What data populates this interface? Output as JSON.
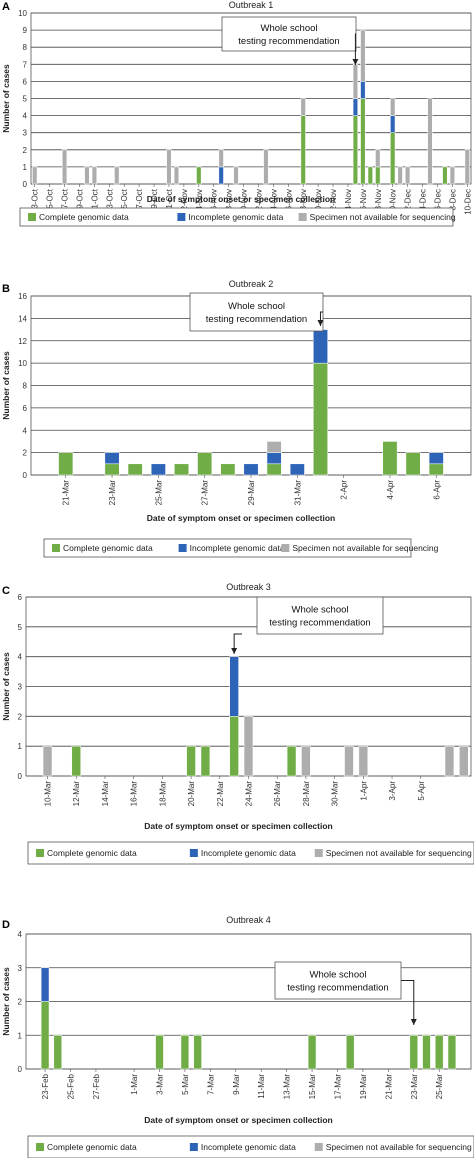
{
  "colors": {
    "complete": "#70AD47",
    "incomplete": "#2E64B8",
    "unavailable": "#ADADAD",
    "grid": "#444444"
  },
  "legend_labels": [
    "Complete genomic data",
    "Incomplete genomic data",
    "Specimen not available for sequencing"
  ],
  "annotation": {
    "line1": "Whole school",
    "line2": "testing recommendation"
  },
  "chart_data": [
    {
      "type": "bar",
      "stacked": true,
      "panel": "A",
      "title": "Outbreak 1",
      "xlabel": "Date of symptom onset or specimen collection",
      "ylabel": "Number of cases",
      "ylim": [
        0,
        10
      ],
      "yticks": [
        0,
        1,
        2,
        3,
        4,
        5,
        6,
        7,
        8,
        9,
        10
      ],
      "tick_labels": [
        "13-Oct",
        "15-Oct",
        "17-Oct",
        "19-Oct",
        "21-Oct",
        "23-Oct",
        "25-Oct",
        "27-Oct",
        "29-Oct",
        "31-Oct",
        "2-Nov",
        "4-Nov",
        "6-Nov",
        "8-Nov",
        "10-Nov",
        "12-Nov",
        "14-Nov",
        "16-Nov",
        "18-Nov",
        "20-Nov",
        "22-Nov",
        "24-Nov",
        "26-Nov",
        "28-Nov",
        "30-Nov",
        "2-Dec",
        "4-Dec",
        "6-Dec",
        "8-Dec",
        "10-Dec"
      ],
      "annotated_date": "25-Nov",
      "bars": [
        {
          "date": "13-Oct",
          "complete": 0,
          "incomplete": 0,
          "unavailable": 1
        },
        {
          "date": "17-Oct",
          "complete": 0,
          "incomplete": 0,
          "unavailable": 2
        },
        {
          "date": "20-Oct",
          "complete": 0,
          "incomplete": 0,
          "unavailable": 1
        },
        {
          "date": "21-Oct",
          "complete": 0,
          "incomplete": 0,
          "unavailable": 1
        },
        {
          "date": "24-Oct",
          "complete": 0,
          "incomplete": 0,
          "unavailable": 1
        },
        {
          "date": "31-Oct",
          "complete": 0,
          "incomplete": 0,
          "unavailable": 2
        },
        {
          "date": "1-Nov",
          "complete": 0,
          "incomplete": 0,
          "unavailable": 1
        },
        {
          "date": "4-Nov",
          "complete": 1,
          "incomplete": 0,
          "unavailable": 0
        },
        {
          "date": "7-Nov",
          "complete": 0,
          "incomplete": 1,
          "unavailable": 1
        },
        {
          "date": "9-Nov",
          "complete": 0,
          "incomplete": 0,
          "unavailable": 1
        },
        {
          "date": "13-Nov",
          "complete": 0,
          "incomplete": 0,
          "unavailable": 2
        },
        {
          "date": "18-Nov",
          "complete": 4,
          "incomplete": 0,
          "unavailable": 1
        },
        {
          "date": "25-Nov",
          "complete": 4,
          "incomplete": 1,
          "unavailable": 2
        },
        {
          "date": "26-Nov",
          "complete": 5,
          "incomplete": 1,
          "unavailable": 3
        },
        {
          "date": "27-Nov",
          "complete": 1,
          "incomplete": 0,
          "unavailable": 0
        },
        {
          "date": "28-Nov",
          "complete": 1,
          "incomplete": 0,
          "unavailable": 1
        },
        {
          "date": "30-Nov",
          "complete": 3,
          "incomplete": 1,
          "unavailable": 1
        },
        {
          "date": "1-Dec",
          "complete": 0,
          "incomplete": 0,
          "unavailable": 1
        },
        {
          "date": "2-Dec",
          "complete": 0,
          "incomplete": 0,
          "unavailable": 1
        },
        {
          "date": "5-Dec",
          "complete": 0,
          "incomplete": 0,
          "unavailable": 5
        },
        {
          "date": "7-Dec",
          "complete": 1,
          "incomplete": 0,
          "unavailable": 0
        },
        {
          "date": "8-Dec",
          "complete": 0,
          "incomplete": 0,
          "unavailable": 1
        },
        {
          "date": "10-Dec",
          "complete": 0,
          "incomplete": 0,
          "unavailable": 2
        }
      ]
    },
    {
      "type": "bar",
      "stacked": true,
      "panel": "B",
      "title": "Outbreak 2",
      "xlabel": "Date of symptom onset or specimen collection",
      "ylabel": "Number of cases",
      "ylim": [
        0,
        16
      ],
      "yticks": [
        0,
        2,
        4,
        6,
        8,
        10,
        12,
        14,
        16
      ],
      "tick_labels": [
        "21-Mar",
        "23-Mar",
        "25-Mar",
        "27-Mar",
        "29-Mar",
        "31-Mar",
        "2-Apr",
        "4-Apr",
        "6-Apr"
      ],
      "annotated_date": "1-Apr",
      "bars": [
        {
          "date": "21-Mar",
          "complete": 2,
          "incomplete": 0,
          "unavailable": 0
        },
        {
          "date": "23-Mar",
          "complete": 1,
          "incomplete": 1,
          "unavailable": 0
        },
        {
          "date": "24-Mar",
          "complete": 1,
          "incomplete": 0,
          "unavailable": 0
        },
        {
          "date": "25-Mar",
          "complete": 0,
          "incomplete": 1,
          "unavailable": 0
        },
        {
          "date": "26-Mar",
          "complete": 1,
          "incomplete": 0,
          "unavailable": 0
        },
        {
          "date": "27-Mar",
          "complete": 2,
          "incomplete": 0,
          "unavailable": 0
        },
        {
          "date": "28-Mar",
          "complete": 1,
          "incomplete": 0,
          "unavailable": 0
        },
        {
          "date": "29-Mar",
          "complete": 0,
          "incomplete": 1,
          "unavailable": 0
        },
        {
          "date": "30-Mar",
          "complete": 1,
          "incomplete": 1,
          "unavailable": 1
        },
        {
          "date": "31-Mar",
          "complete": 0,
          "incomplete": 1,
          "unavailable": 0
        },
        {
          "date": "1-Apr",
          "complete": 10,
          "incomplete": 3,
          "unavailable": 0
        },
        {
          "date": "4-Apr",
          "complete": 3,
          "incomplete": 0,
          "unavailable": 0
        },
        {
          "date": "5-Apr",
          "complete": 2,
          "incomplete": 0,
          "unavailable": 0
        },
        {
          "date": "6-Apr",
          "complete": 1,
          "incomplete": 1,
          "unavailable": 0
        }
      ]
    },
    {
      "type": "bar",
      "stacked": true,
      "panel": "C",
      "title": "Outbreak 3",
      "xlabel": "Date of symptom onset or specimen collection",
      "ylabel": "Number of cases",
      "ylim": [
        0,
        6
      ],
      "yticks": [
        0,
        1,
        2,
        3,
        4,
        5,
        6
      ],
      "tick_labels": [
        "10-Mar",
        "12-Mar",
        "14-Mar",
        "16-Mar",
        "18-Mar",
        "20-Mar",
        "22-Mar",
        "24-Mar",
        "26-Mar",
        "28-Mar",
        "30-Mar",
        "1-Apr",
        "3-Apr",
        "5-Apr"
      ],
      "annotated_date": "23-Mar",
      "bars": [
        {
          "date": "10-Mar",
          "complete": 0,
          "incomplete": 0,
          "unavailable": 1
        },
        {
          "date": "12-Mar",
          "complete": 1,
          "incomplete": 0,
          "unavailable": 0
        },
        {
          "date": "20-Mar",
          "complete": 1,
          "incomplete": 0,
          "unavailable": 0
        },
        {
          "date": "21-Mar",
          "complete": 1,
          "incomplete": 0,
          "unavailable": 0
        },
        {
          "date": "23-Mar",
          "complete": 2,
          "incomplete": 2,
          "unavailable": 0
        },
        {
          "date": "24-Mar",
          "complete": 0,
          "incomplete": 0,
          "unavailable": 2
        },
        {
          "date": "27-Mar",
          "complete": 1,
          "incomplete": 0,
          "unavailable": 0
        },
        {
          "date": "28-Mar",
          "complete": 0,
          "incomplete": 0,
          "unavailable": 1
        },
        {
          "date": "31-Mar",
          "complete": 0,
          "incomplete": 0,
          "unavailable": 1
        },
        {
          "date": "1-Apr",
          "complete": 0,
          "incomplete": 0,
          "unavailable": 1
        },
        {
          "date": "7-Apr",
          "complete": 0,
          "incomplete": 0,
          "unavailable": 1
        },
        {
          "date": "8-Apr",
          "complete": 0,
          "incomplete": 0,
          "unavailable": 1
        }
      ]
    },
    {
      "type": "bar",
      "stacked": true,
      "panel": "D",
      "title": "Outbreak 4",
      "xlabel": "Date of symptom onset or specimen collection",
      "ylabel": "Number of cases",
      "ylim": [
        0,
        4
      ],
      "yticks": [
        0,
        1,
        2,
        3,
        4
      ],
      "tick_labels": [
        "23-Feb",
        "25-Feb",
        "27-Feb",
        "1-Mar",
        "3-Mar",
        "5-Mar",
        "7-Mar",
        "9-Mar",
        "11-Mar",
        "13-Mar",
        "15-Mar",
        "17-Mar",
        "19-Mar",
        "21-Mar",
        "23-Mar",
        "25-Mar"
      ],
      "annotated_date": "23-Mar",
      "bars": [
        {
          "date": "23-Feb",
          "complete": 2,
          "incomplete": 1,
          "unavailable": 0
        },
        {
          "date": "24-Feb",
          "complete": 1,
          "incomplete": 0,
          "unavailable": 0
        },
        {
          "date": "3-Mar",
          "complete": 1,
          "incomplete": 0,
          "unavailable": 0
        },
        {
          "date": "5-Mar",
          "complete": 1,
          "incomplete": 0,
          "unavailable": 0
        },
        {
          "date": "6-Mar",
          "complete": 1,
          "incomplete": 0,
          "unavailable": 0
        },
        {
          "date": "15-Mar",
          "complete": 1,
          "incomplete": 0,
          "unavailable": 0
        },
        {
          "date": "18-Mar",
          "complete": 1,
          "incomplete": 0,
          "unavailable": 0
        },
        {
          "date": "23-Mar",
          "complete": 1,
          "incomplete": 0,
          "unavailable": 0
        },
        {
          "date": "24-Mar",
          "complete": 1,
          "incomplete": 0,
          "unavailable": 0
        },
        {
          "date": "25-Mar",
          "complete": 1,
          "incomplete": 0,
          "unavailable": 0
        },
        {
          "date": "26-Mar",
          "complete": 1,
          "incomplete": 0,
          "unavailable": 0
        }
      ]
    }
  ]
}
